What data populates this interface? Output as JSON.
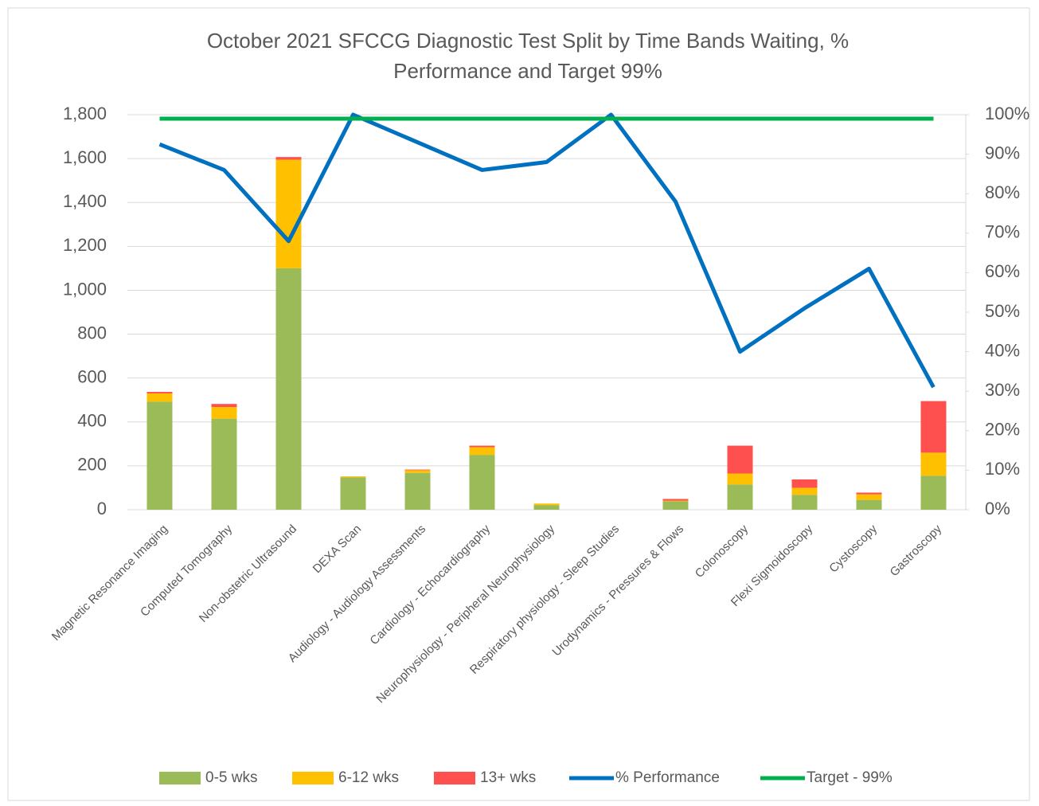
{
  "chart_data": {
    "type": "bar",
    "title": "October 2021 SFCCG Diagnostic Test Split by Time Bands Waiting, % Performance and Target 99%",
    "categories": [
      "Magnetic Resonance Imaging",
      "Computed Tomography",
      "Non-obstetric Ultrasound",
      "DEXA Scan",
      "Audiology - Audiology Assessments",
      "Cardiology - Echocardiography",
      "Neurophysiology - Peripheral Neurophysiology",
      "Respiratory physiology - Sleep Studies",
      "Urodynamics - Pressures & Flows",
      "Colonoscopy",
      "Flexi Sigmoidoscopy",
      "Cystoscopy",
      "Gastroscopy"
    ],
    "series": [
      {
        "name": "0-5 wks",
        "color": "#9bbb59",
        "type": "bar",
        "values": [
          492,
          415,
          1100,
          148,
          168,
          250,
          20,
          0,
          38,
          115,
          68,
          45,
          155
        ]
      },
      {
        "name": "6-12 wks",
        "color": "#ffc000",
        "type": "bar",
        "values": [
          38,
          53,
          495,
          4,
          12,
          35,
          8,
          0,
          3,
          50,
          32,
          25,
          105
        ]
      },
      {
        "name": "13+ wks",
        "color": "#ff5050",
        "type": "bar",
        "values": [
          7,
          14,
          12,
          0,
          3,
          7,
          0,
          0,
          8,
          127,
          38,
          8,
          235
        ]
      },
      {
        "name": "% Performance",
        "color": "#0070c0",
        "type": "line",
        "axis": "y2",
        "values": [
          92.5,
          86,
          68,
          100,
          93,
          86,
          88,
          100,
          78,
          40,
          51,
          61,
          31
        ]
      },
      {
        "name": "Target - 99%",
        "color": "#00b050",
        "type": "line",
        "axis": "y2",
        "values": [
          99,
          99,
          99,
          99,
          99,
          99,
          99,
          99,
          99,
          99,
          99,
          99,
          99
        ]
      }
    ],
    "stacked": true,
    "ylim": [
      0,
      1800
    ],
    "yticks": [
      0,
      200,
      400,
      600,
      800,
      {
        "value": 1000,
        "label": "1,000"
      },
      {
        "value": 1200,
        "label": "1,200"
      },
      {
        "value": 1400,
        "label": "1,400"
      },
      {
        "value": 1600,
        "label": "1,600"
      },
      {
        "value": 1800,
        "label": "1,800"
      }
    ],
    "y2lim": [
      0,
      100
    ],
    "y2ticks": [
      {
        "value": 0,
        "label": "0%"
      },
      {
        "value": 10,
        "label": "10%"
      },
      {
        "value": 20,
        "label": "20%"
      },
      {
        "value": 30,
        "label": "30%"
      },
      {
        "value": 40,
        "label": "40%"
      },
      {
        "value": 50,
        "label": "50%"
      },
      {
        "value": 60,
        "label": "60%"
      },
      {
        "value": 70,
        "label": "70%"
      },
      {
        "value": 80,
        "label": "80%"
      },
      {
        "value": 90,
        "label": "90%"
      },
      {
        "value": 100,
        "label": "100%"
      }
    ],
    "grid": true,
    "legend": "bottom"
  }
}
